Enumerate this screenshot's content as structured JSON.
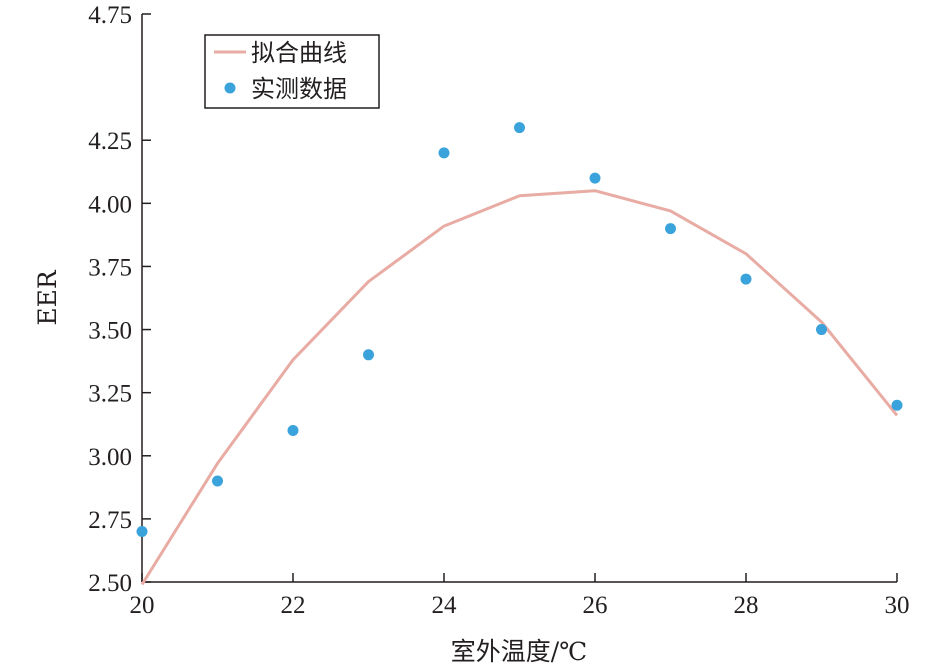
{
  "chart_data": {
    "type": "line",
    "xlabel": "室外温度/℃",
    "ylabel": "EER",
    "xlim": [
      20,
      30
    ],
    "ylim": [
      2.5,
      4.75
    ],
    "xticks": [
      "20",
      "22",
      "24",
      "26",
      "28",
      "30"
    ],
    "yticks": [
      "2.50",
      "2.75",
      "3.00",
      "3.25",
      "3.50",
      "3.75",
      "4.00",
      "4.25",
      "4.75"
    ],
    "grid": false,
    "legend_position": "top-left",
    "series": [
      {
        "name": "拟合曲线",
        "kind": "line",
        "color": "#e8aca4",
        "x": [
          20,
          21,
          22,
          23,
          24,
          25,
          26,
          27,
          28,
          29,
          30
        ],
        "y": [
          2.49,
          2.97,
          3.38,
          3.69,
          3.91,
          4.03,
          4.05,
          3.97,
          3.8,
          3.53,
          3.16
        ]
      },
      {
        "name": "实测数据",
        "kind": "scatter",
        "color": "#3aa3db",
        "x": [
          20,
          21,
          22,
          23,
          24,
          25,
          26,
          27,
          28,
          29,
          30
        ],
        "y": [
          2.7,
          2.9,
          3.1,
          3.4,
          4.2,
          4.3,
          4.1,
          3.9,
          3.7,
          3.5,
          3.2
        ]
      }
    ]
  }
}
